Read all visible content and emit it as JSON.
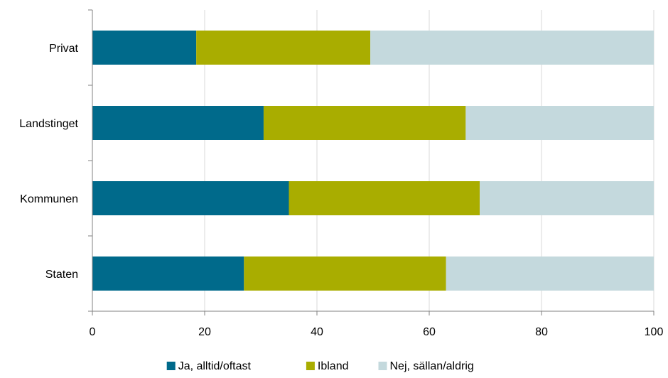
{
  "chart_data": {
    "type": "bar",
    "orientation": "horizontal",
    "stacked": true,
    "categories": [
      "Privat",
      "Landstinget",
      "Kommunen",
      "Staten"
    ],
    "series": [
      {
        "name": "Ja, alltid/oftast",
        "color": "#006a8b",
        "values": [
          18.5,
          30.5,
          35,
          27
        ]
      },
      {
        "name": "Ibland",
        "color": "#a9ad00",
        "values": [
          31,
          36,
          34,
          36
        ]
      },
      {
        "name": "Nej, sällan/aldrig",
        "color": "#c4d9dd",
        "values": [
          50.5,
          33.5,
          31,
          37
        ]
      }
    ],
    "xlim": [
      0,
      100
    ],
    "xticks": [
      0,
      20,
      40,
      60,
      80,
      100
    ],
    "xtick_labels": [
      "0",
      "20",
      "40",
      "60",
      "80",
      "100"
    ],
    "grid": "vertical",
    "legend_position": "bottom"
  }
}
